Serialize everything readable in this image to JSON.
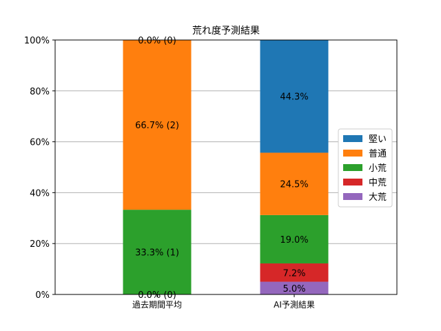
{
  "chart_data": {
    "type": "bar",
    "stacked": true,
    "title": "荒れ度予測結果",
    "categories": [
      "過去期間平均",
      "AI予測結果"
    ],
    "ylim": [
      0,
      1
    ],
    "yticks": [
      {
        "value": 0,
        "label": "0%"
      },
      {
        "value": 0.2,
        "label": "20%"
      },
      {
        "value": 0.4,
        "label": "40%"
      },
      {
        "value": 0.6,
        "label": "60%"
      },
      {
        "value": 0.8,
        "label": "80%"
      },
      {
        "value": 1.0,
        "label": "100%"
      }
    ],
    "grid": true,
    "legend": "center-right",
    "series": [
      {
        "name": "大荒",
        "color": "#9467bd",
        "values": [
          0.0,
          0.05
        ],
        "labels": [
          "0.0% (0)",
          "5.0%"
        ]
      },
      {
        "name": "中荒",
        "color": "#d62728",
        "values": [
          0.0,
          0.072
        ],
        "labels": [
          "",
          "7.2%"
        ]
      },
      {
        "name": "小荒",
        "color": "#2ca02c",
        "values": [
          0.333,
          0.19
        ],
        "labels": [
          "33.3% (1)",
          "19.0%"
        ]
      },
      {
        "name": "普通",
        "color": "#ff7f0e",
        "values": [
          0.667,
          0.245
        ],
        "labels": [
          "66.7% (2)",
          "24.5%"
        ]
      },
      {
        "name": "堅い",
        "color": "#1f77b4",
        "values": [
          0.0,
          0.443
        ],
        "labels": [
          "0.0% (0)",
          "44.3%"
        ]
      }
    ],
    "legend_order": [
      "堅い",
      "普通",
      "小荒",
      "中荒",
      "大荒"
    ]
  }
}
